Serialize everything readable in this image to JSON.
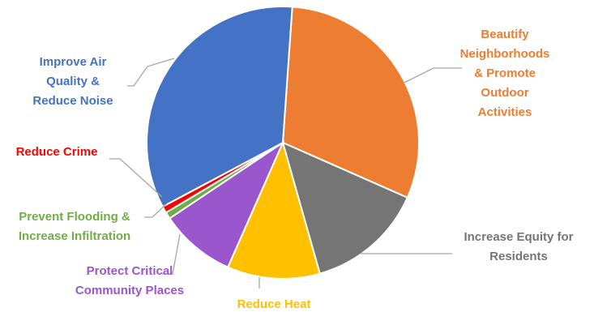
{
  "chart_data": {
    "type": "pie",
    "title": "",
    "legend": "none",
    "slices": [
      {
        "label": "Beautify Neighborhoods & Promote Outdoor Activities",
        "value": 30.5,
        "color": "#ED7D31"
      },
      {
        "label": "Increase Equity for Residents",
        "value": 14.0,
        "color": "#757575"
      },
      {
        "label": "Reduce Heat",
        "value": 11.0,
        "color": "#FFC000"
      },
      {
        "label": "Protect Critical Community Places",
        "value": 9.0,
        "color": "#9A57CD"
      },
      {
        "label": "Prevent Flooding & Increase Infiltration",
        "value": 0.8,
        "color": "#70AD47"
      },
      {
        "label": "Reduce Crime",
        "value": 0.8,
        "color": "#FF0000"
      },
      {
        "label": "Improve Air Quality & Reduce Noise",
        "value": 33.9,
        "color": "#4472C4"
      }
    ]
  }
}
